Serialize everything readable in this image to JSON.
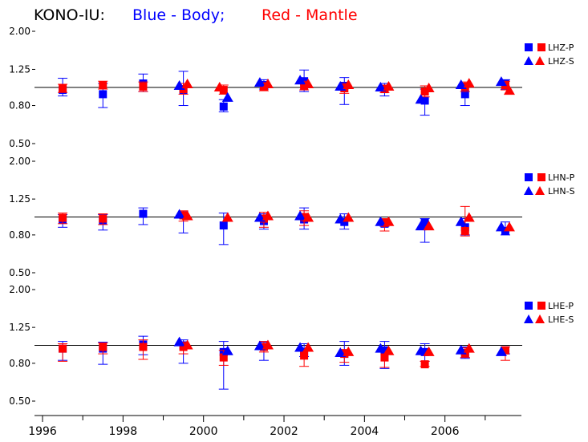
{
  "title": {
    "station": "KONO-IU:",
    "blue_part": "Blue - Body;",
    "red_part": "Red - Mantle"
  },
  "colors": {
    "title": "#000000",
    "body": "#0000ff",
    "mantle": "#ff0000",
    "reference_line": "#000000",
    "axis": "#000000"
  },
  "x_axis": {
    "range": [
      1995.8,
      2007.9
    ],
    "tick_labels": [
      "1996",
      "1998",
      "2000",
      "2002",
      "2004",
      "2006"
    ],
    "tick_positions": [
      1996,
      1998,
      2000,
      2002,
      2004,
      2006
    ],
    "minor_ticks": [
      1997,
      1999,
      2001,
      2003,
      2005,
      2007
    ]
  },
  "chart_data": [
    {
      "type": "scatter",
      "channel": "LHZ",
      "scale": "log",
      "ylim": [
        0.45,
        2.05
      ],
      "ytick_labels": [
        "2.00",
        "1.25",
        "0.80",
        "0.50"
      ],
      "yticks": [
        2.0,
        1.25,
        0.8,
        0.5
      ],
      "reference_y": 1.0,
      "legend": [
        {
          "symbol": "square",
          "label": "LHZ-P"
        },
        {
          "symbol": "triangle",
          "label": "LHZ-S"
        }
      ],
      "series": [
        {
          "name": "Blue - Body",
          "symbol": "square",
          "color": "#0000ff",
          "points": [
            {
              "x": 1996.5,
              "y": 0.97,
              "lo": 0.9,
              "hi": 1.12
            },
            {
              "x": 1997.5,
              "y": 0.92,
              "lo": 0.78,
              "hi": 1.05
            },
            {
              "x": 1998.5,
              "y": 1.05,
              "lo": 0.95,
              "hi": 1.18
            },
            {
              "x": 1999.5,
              "y": 0.97,
              "lo": 0.8,
              "hi": 1.22
            },
            {
              "x": 2000.5,
              "y": 0.79,
              "lo": 0.74,
              "hi": 0.86
            },
            {
              "x": 2001.5,
              "y": 1.03,
              "lo": 0.98,
              "hi": 1.1
            },
            {
              "x": 2002.5,
              "y": 1.08,
              "lo": 0.95,
              "hi": 1.24
            },
            {
              "x": 2003.5,
              "y": 1.02,
              "lo": 0.81,
              "hi": 1.13
            },
            {
              "x": 2004.5,
              "y": 0.98,
              "lo": 0.9,
              "hi": 1.05
            },
            {
              "x": 2005.5,
              "y": 0.85,
              "lo": 0.71,
              "hi": 0.98
            },
            {
              "x": 2006.5,
              "y": 0.92,
              "lo": 0.8,
              "hi": 1.04
            },
            {
              "x": 2007.5,
              "y": 1.05,
              "lo": 0.98,
              "hi": 1.1
            }
          ]
        },
        {
          "name": "Red - Mantle",
          "symbol": "square",
          "color": "#ff0000",
          "points": [
            {
              "x": 1996.5,
              "y": 0.99,
              "lo": 0.94,
              "hi": 1.04
            },
            {
              "x": 1997.5,
              "y": 1.03,
              "lo": 0.98,
              "hi": 1.08
            },
            {
              "x": 1998.5,
              "y": 1.01,
              "lo": 0.95,
              "hi": 1.07
            },
            {
              "x": 1999.5,
              "y": 0.98,
              "lo": 0.92,
              "hi": 1.05
            },
            {
              "x": 2000.5,
              "y": 0.97,
              "lo": 0.92,
              "hi": 1.03
            },
            {
              "x": 2001.5,
              "y": 1.01,
              "lo": 0.96,
              "hi": 1.06
            },
            {
              "x": 2002.5,
              "y": 1.02,
              "lo": 0.97,
              "hi": 1.08
            },
            {
              "x": 2003.5,
              "y": 0.99,
              "lo": 0.93,
              "hi": 1.05
            },
            {
              "x": 2004.5,
              "y": 0.98,
              "lo": 0.94,
              "hi": 1.03
            },
            {
              "x": 2005.5,
              "y": 0.95,
              "lo": 0.89,
              "hi": 1.02
            },
            {
              "x": 2006.5,
              "y": 1.01,
              "lo": 0.95,
              "hi": 1.07
            },
            {
              "x": 2007.5,
              "y": 1.03,
              "lo": 0.97,
              "hi": 1.08
            }
          ]
        },
        {
          "name": "Blue - Body",
          "symbol": "triangle",
          "color": "#0000ff",
          "points": [
            {
              "x": 1999.4,
              "y": 1.02
            },
            {
              "x": 2000.6,
              "y": 0.88
            },
            {
              "x": 2001.4,
              "y": 1.06
            },
            {
              "x": 2002.4,
              "y": 1.09
            },
            {
              "x": 2003.4,
              "y": 1.01
            },
            {
              "x": 2004.4,
              "y": 1.0
            },
            {
              "x": 2005.4,
              "y": 0.86
            },
            {
              "x": 2006.4,
              "y": 1.03
            },
            {
              "x": 2007.4,
              "y": 1.07
            }
          ]
        },
        {
          "name": "Red - Mantle",
          "symbol": "triangle",
          "color": "#ff0000",
          "points": [
            {
              "x": 1999.6,
              "y": 1.04
            },
            {
              "x": 2000.4,
              "y": 1.0
            },
            {
              "x": 2001.6,
              "y": 1.04
            },
            {
              "x": 2002.6,
              "y": 1.04
            },
            {
              "x": 2003.6,
              "y": 1.03
            },
            {
              "x": 2004.6,
              "y": 1.01
            },
            {
              "x": 2005.6,
              "y": 0.99
            },
            {
              "x": 2006.6,
              "y": 1.05
            },
            {
              "x": 2007.6,
              "y": 0.96
            }
          ]
        }
      ]
    },
    {
      "type": "scatter",
      "channel": "LHN",
      "scale": "log",
      "ylim": [
        0.45,
        2.05
      ],
      "ytick_labels": [
        "2.00",
        "1.25",
        "0.80",
        "0.50"
      ],
      "yticks": [
        2.0,
        1.25,
        0.8,
        0.5
      ],
      "reference_y": 1.0,
      "legend": [
        {
          "symbol": "square",
          "label": "LHN-P"
        },
        {
          "symbol": "triangle",
          "label": "LHN-S"
        }
      ],
      "series": [
        {
          "name": "Blue - Body",
          "symbol": "square",
          "color": "#0000ff",
          "points": [
            {
              "x": 1996.5,
              "y": 0.97,
              "lo": 0.88,
              "hi": 1.03
            },
            {
              "x": 1997.5,
              "y": 0.96,
              "lo": 0.85,
              "hi": 1.03
            },
            {
              "x": 1998.5,
              "y": 1.04,
              "lo": 0.91,
              "hi": 1.12
            },
            {
              "x": 1999.5,
              "y": 1.02,
              "lo": 0.82,
              "hi": 1.07
            },
            {
              "x": 2000.5,
              "y": 0.9,
              "lo": 0.71,
              "hi": 1.05
            },
            {
              "x": 2001.5,
              "y": 0.95,
              "lo": 0.86,
              "hi": 1.04
            },
            {
              "x": 2002.5,
              "y": 0.97,
              "lo": 0.86,
              "hi": 1.12
            },
            {
              "x": 2003.5,
              "y": 0.94,
              "lo": 0.86,
              "hi": 1.04
            },
            {
              "x": 2004.5,
              "y": 0.92,
              "lo": 0.89,
              "hi": 0.96
            },
            {
              "x": 2005.5,
              "y": 0.93,
              "lo": 0.73,
              "hi": 0.98
            },
            {
              "x": 2006.5,
              "y": 0.88,
              "lo": 0.8,
              "hi": 0.98
            },
            {
              "x": 2007.5,
              "y": 0.84,
              "lo": 0.8,
              "hi": 0.94
            }
          ]
        },
        {
          "name": "Red - Mantle",
          "symbol": "square",
          "color": "#ff0000",
          "points": [
            {
              "x": 1996.5,
              "y": 0.99,
              "lo": 0.92,
              "hi": 1.05
            },
            {
              "x": 1997.5,
              "y": 0.98,
              "lo": 0.91,
              "hi": 1.04
            },
            {
              "x": 1999.5,
              "y": 1.02,
              "lo": 0.95,
              "hi": 1.08
            },
            {
              "x": 2001.5,
              "y": 0.98,
              "lo": 0.88,
              "hi": 1.06
            },
            {
              "x": 2002.5,
              "y": 1.0,
              "lo": 0.9,
              "hi": 1.08
            },
            {
              "x": 2004.5,
              "y": 0.93,
              "lo": 0.84,
              "hi": 0.98
            },
            {
              "x": 2006.5,
              "y": 0.84,
              "lo": 0.79,
              "hi": 1.14
            }
          ]
        },
        {
          "name": "Blue - Body",
          "symbol": "triangle",
          "color": "#0000ff",
          "points": [
            {
              "x": 1999.4,
              "y": 1.03
            },
            {
              "x": 2001.4,
              "y": 0.99
            },
            {
              "x": 2002.4,
              "y": 1.01
            },
            {
              "x": 2003.4,
              "y": 0.97
            },
            {
              "x": 2004.4,
              "y": 0.94
            },
            {
              "x": 2005.4,
              "y": 0.89
            },
            {
              "x": 2006.4,
              "y": 0.94
            },
            {
              "x": 2007.4,
              "y": 0.88
            }
          ]
        },
        {
          "name": "Red - Mantle",
          "symbol": "triangle",
          "color": "#ff0000",
          "points": [
            {
              "x": 1999.6,
              "y": 1.01
            },
            {
              "x": 2000.6,
              "y": 0.99
            },
            {
              "x": 2001.6,
              "y": 1.01
            },
            {
              "x": 2002.6,
              "y": 0.99
            },
            {
              "x": 2003.6,
              "y": 0.99
            },
            {
              "x": 2004.6,
              "y": 0.94
            },
            {
              "x": 2005.6,
              "y": 0.89
            },
            {
              "x": 2006.6,
              "y": 0.99
            },
            {
              "x": 2007.6,
              "y": 0.88
            }
          ]
        }
      ]
    },
    {
      "type": "scatter",
      "channel": "LHE",
      "scale": "log",
      "ylim": [
        0.45,
        2.05
      ],
      "ytick_labels": [
        "2.00",
        "1.25",
        "0.80",
        "0.50"
      ],
      "yticks": [
        2.0,
        1.25,
        0.8,
        0.5
      ],
      "reference_y": 1.0,
      "legend": [
        {
          "symbol": "square",
          "label": "LHE-P"
        },
        {
          "symbol": "triangle",
          "label": "LHE-S"
        }
      ],
      "series": [
        {
          "name": "Blue - Body",
          "symbol": "square",
          "color": "#0000ff",
          "points": [
            {
              "x": 1996.5,
              "y": 0.96,
              "lo": 0.83,
              "hi": 1.05
            },
            {
              "x": 1997.5,
              "y": 0.96,
              "lo": 0.79,
              "hi": 1.04
            },
            {
              "x": 1998.5,
              "y": 1.01,
              "lo": 0.89,
              "hi": 1.12
            },
            {
              "x": 1999.5,
              "y": 1.0,
              "lo": 0.8,
              "hi": 1.07
            },
            {
              "x": 2000.5,
              "y": 0.92,
              "lo": 0.58,
              "hi": 1.05
            },
            {
              "x": 2001.5,
              "y": 0.98,
              "lo": 0.83,
              "hi": 1.04
            },
            {
              "x": 2002.5,
              "y": 0.92,
              "lo": 0.87,
              "hi": 1.02
            },
            {
              "x": 2003.5,
              "y": 0.9,
              "lo": 0.78,
              "hi": 1.05
            },
            {
              "x": 2004.5,
              "y": 0.94,
              "lo": 0.75,
              "hi": 1.05
            },
            {
              "x": 2005.5,
              "y": 0.92,
              "lo": 0.82,
              "hi": 1.02
            },
            {
              "x": 2006.5,
              "y": 0.9,
              "lo": 0.85,
              "hi": 0.98
            },
            {
              "x": 2007.5,
              "y": 0.94,
              "lo": 0.9,
              "hi": 0.98
            }
          ]
        },
        {
          "name": "Red - Mantle",
          "symbol": "square",
          "color": "#ff0000",
          "points": [
            {
              "x": 1996.5,
              "y": 0.96,
              "lo": 0.82,
              "hi": 1.02
            },
            {
              "x": 1997.5,
              "y": 0.98,
              "lo": 0.9,
              "hi": 1.03
            },
            {
              "x": 1998.5,
              "y": 0.98,
              "lo": 0.84,
              "hi": 1.07
            },
            {
              "x": 1999.5,
              "y": 0.98,
              "lo": 0.9,
              "hi": 1.04
            },
            {
              "x": 2000.5,
              "y": 0.86,
              "lo": 0.78,
              "hi": 0.94
            },
            {
              "x": 2001.5,
              "y": 0.98,
              "lo": 0.92,
              "hi": 1.05
            },
            {
              "x": 2002.5,
              "y": 0.88,
              "lo": 0.77,
              "hi": 0.93
            },
            {
              "x": 2003.5,
              "y": 0.9,
              "lo": 0.81,
              "hi": 0.95
            },
            {
              "x": 2004.5,
              "y": 0.86,
              "lo": 0.76,
              "hi": 0.93
            },
            {
              "x": 2005.5,
              "y": 0.79,
              "lo": 0.77,
              "hi": 0.82
            },
            {
              "x": 2006.5,
              "y": 0.91,
              "lo": 0.86,
              "hi": 0.97
            },
            {
              "x": 2007.5,
              "y": 0.94,
              "lo": 0.83,
              "hi": 0.98
            }
          ]
        },
        {
          "name": "Blue - Body",
          "symbol": "triangle",
          "color": "#0000ff",
          "points": [
            {
              "x": 1999.4,
              "y": 1.04
            },
            {
              "x": 2000.6,
              "y": 0.93
            },
            {
              "x": 2001.4,
              "y": 0.99
            },
            {
              "x": 2002.4,
              "y": 0.97
            },
            {
              "x": 2003.4,
              "y": 0.91
            },
            {
              "x": 2004.4,
              "y": 0.96
            },
            {
              "x": 2005.4,
              "y": 0.93
            },
            {
              "x": 2006.4,
              "y": 0.94
            },
            {
              "x": 2007.4,
              "y": 0.92
            }
          ]
        },
        {
          "name": "Red - Mantle",
          "symbol": "triangle",
          "color": "#ff0000",
          "points": [
            {
              "x": 1999.6,
              "y": 1.0
            },
            {
              "x": 2001.6,
              "y": 1.0
            },
            {
              "x": 2002.6,
              "y": 0.97
            },
            {
              "x": 2003.6,
              "y": 0.92
            },
            {
              "x": 2004.6,
              "y": 0.93
            },
            {
              "x": 2005.6,
              "y": 0.92
            },
            {
              "x": 2006.6,
              "y": 0.96
            }
          ]
        }
      ]
    }
  ]
}
